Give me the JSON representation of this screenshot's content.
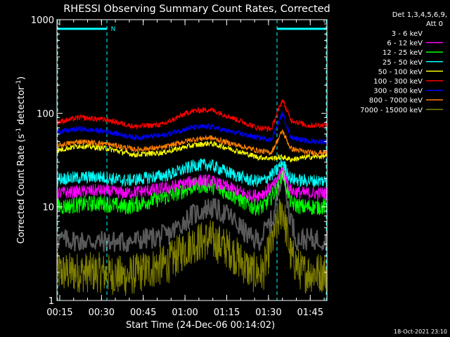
{
  "chart_data": {
    "type": "line",
    "title": "RHESSI Observing Summary Count Rates, Corrected",
    "xlabel": "Start Time (24-Dec-06 00:14:02)",
    "ylabel": "Corrected Count Rate (s",
    "ylabel_sup1": "-1",
    "ylabel_mid": " detector",
    "ylabel_sup2": "-1",
    "ylabel_end": ")",
    "yscale": "log",
    "ylim": [
      1,
      1000
    ],
    "xlim_minutes": [
      0,
      97
    ],
    "xticks": [
      "00:15",
      "00:30",
      "00:45",
      "01:00",
      "01:15",
      "01:30",
      "01:45"
    ],
    "yticks": [
      "1",
      "10",
      "100",
      "1000"
    ],
    "legend_header": [
      "Det 1,3,4,5,6,9,",
      "Att 0"
    ],
    "timestamp": "18-Oct-2021 23:10",
    "flag_label": "N",
    "flag_color": "#00ffff",
    "series": [
      {
        "name": "3 - 6 keV",
        "color": "#000000",
        "key": [
          [
            0,
            4.5
          ],
          [
            10,
            4.3
          ],
          [
            25,
            4.2
          ],
          [
            40,
            5
          ],
          [
            48,
            8
          ],
          [
            55,
            10
          ],
          [
            62,
            8
          ],
          [
            70,
            4.5
          ],
          [
            73,
            4.5
          ],
          [
            78,
            8
          ],
          [
            81,
            27
          ],
          [
            83,
            10
          ],
          [
            86,
            4.5
          ],
          [
            97,
            4.5
          ]
        ],
        "noise": 0.12
      },
      {
        "name": "6 - 12 keV",
        "color": "#ff00ff",
        "key": [
          [
            0,
            14
          ],
          [
            15,
            15
          ],
          [
            25,
            14
          ],
          [
            40,
            16
          ],
          [
            50,
            19
          ],
          [
            55,
            19
          ],
          [
            62,
            16
          ],
          [
            70,
            13
          ],
          [
            74,
            14
          ],
          [
            78,
            17
          ],
          [
            81,
            25
          ],
          [
            84,
            15
          ],
          [
            88,
            14
          ],
          [
            97,
            14
          ]
        ],
        "noise": 0.07
      },
      {
        "name": "12 - 25 keV",
        "color": "#00ff00",
        "key": [
          [
            0,
            10
          ],
          [
            15,
            11
          ],
          [
            25,
            10
          ],
          [
            40,
            13
          ],
          [
            50,
            17
          ],
          [
            55,
            17
          ],
          [
            62,
            14
          ],
          [
            70,
            10
          ],
          [
            74,
            10
          ],
          [
            78,
            14
          ],
          [
            81,
            24
          ],
          [
            84,
            11
          ],
          [
            88,
            10
          ],
          [
            97,
            10
          ]
        ],
        "noise": 0.09
      },
      {
        "name": "25 - 50 keV",
        "color": "#00ffff",
        "key": [
          [
            0,
            20
          ],
          [
            15,
            21
          ],
          [
            25,
            19
          ],
          [
            40,
            22
          ],
          [
            50,
            28
          ],
          [
            55,
            28
          ],
          [
            62,
            23
          ],
          [
            70,
            19
          ],
          [
            74,
            19
          ],
          [
            78,
            23
          ],
          [
            81,
            30
          ],
          [
            84,
            20
          ],
          [
            88,
            19
          ],
          [
            97,
            19
          ]
        ],
        "noise": 0.07
      },
      {
        "name": "50 - 100 keV",
        "color": "#ffff00",
        "key": [
          [
            0,
            40
          ],
          [
            8,
            45
          ],
          [
            18,
            42
          ],
          [
            28,
            36
          ],
          [
            38,
            38
          ],
          [
            48,
            45
          ],
          [
            55,
            48
          ],
          [
            62,
            42
          ],
          [
            72,
            34
          ],
          [
            77,
            33
          ],
          [
            81,
            34
          ],
          [
            84,
            32
          ],
          [
            90,
            34
          ],
          [
            97,
            35
          ]
        ],
        "noise": 0.03
      },
      {
        "name": "100 - 300 keV",
        "color": "#ff0000",
        "key": [
          [
            0,
            80
          ],
          [
            8,
            90
          ],
          [
            18,
            85
          ],
          [
            28,
            72
          ],
          [
            38,
            76
          ],
          [
            48,
            105
          ],
          [
            55,
            110
          ],
          [
            62,
            92
          ],
          [
            72,
            70
          ],
          [
            77,
            68
          ],
          [
            81,
            140
          ],
          [
            84,
            85
          ],
          [
            90,
            74
          ],
          [
            97,
            75
          ]
        ],
        "noise": 0.03
      },
      {
        "name": "300 - 800 keV",
        "color": "#0000ff",
        "key": [
          [
            0,
            63
          ],
          [
            8,
            68
          ],
          [
            18,
            64
          ],
          [
            28,
            55
          ],
          [
            38,
            58
          ],
          [
            48,
            70
          ],
          [
            55,
            72
          ],
          [
            62,
            64
          ],
          [
            72,
            55
          ],
          [
            77,
            52
          ],
          [
            81,
            100
          ],
          [
            84,
            56
          ],
          [
            90,
            50
          ],
          [
            97,
            50
          ]
        ],
        "noise": 0.03
      },
      {
        "name": "800 - 7000 keV",
        "color": "#ff8000",
        "key": [
          [
            0,
            45
          ],
          [
            8,
            50
          ],
          [
            18,
            47
          ],
          [
            28,
            41
          ],
          [
            38,
            43
          ],
          [
            48,
            52
          ],
          [
            55,
            55
          ],
          [
            62,
            48
          ],
          [
            72,
            40
          ],
          [
            77,
            38
          ],
          [
            81,
            65
          ],
          [
            84,
            42
          ],
          [
            90,
            38
          ],
          [
            97,
            38
          ]
        ],
        "noise": 0.03
      },
      {
        "name": "7000 - 15000 keV",
        "color": "#808000",
        "key": [
          [
            0,
            2
          ],
          [
            15,
            2
          ],
          [
            25,
            1.8
          ],
          [
            40,
            2.5
          ],
          [
            48,
            4
          ],
          [
            55,
            4.5
          ],
          [
            62,
            3.5
          ],
          [
            70,
            2
          ],
          [
            74,
            2
          ],
          [
            78,
            5
          ],
          [
            81,
            10
          ],
          [
            84,
            3
          ],
          [
            88,
            2
          ],
          [
            97,
            2
          ]
        ],
        "noise": 0.22
      }
    ]
  }
}
